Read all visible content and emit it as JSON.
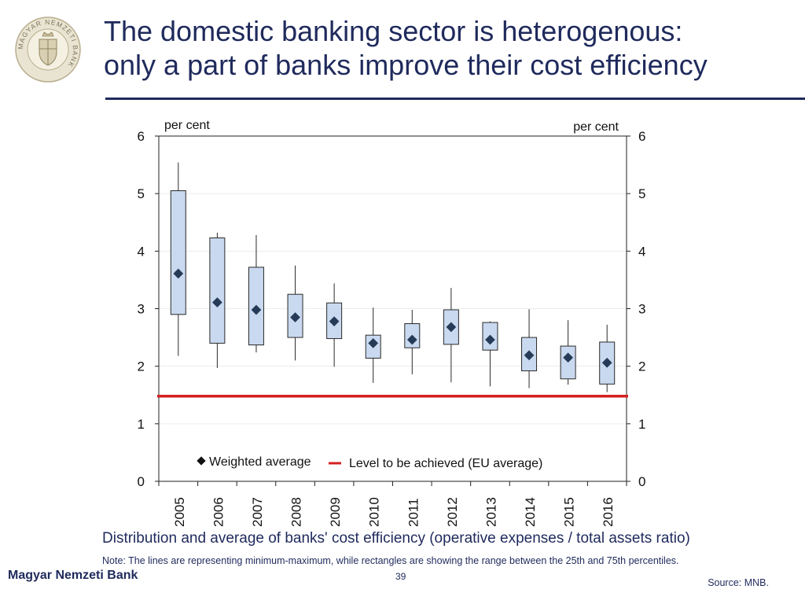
{
  "slide": {
    "title_line1": "The domestic banking sector is heterogenous:",
    "title_line2": "only a part of banks improve their cost efficiency",
    "caption": "Distribution and average of banks' cost efficiency (operative expenses / total assets ratio)",
    "note": "Note: The lines are representing minimum-maximum, while rectangles are showing the range between the 25th and 75th percentiles.",
    "brand": "Magyar Nemzeti Bank",
    "page_number": "39",
    "source": "Source: MNB.",
    "logo_text": "MAGYAR NEMZETI BANK"
  },
  "colors": {
    "title": "#1f2a5c",
    "box_fill": "#c9d9ef",
    "box_stroke": "#2a2a2a",
    "marker": "#253b57",
    "eu_line": "#d42020",
    "gridline": "#ececec"
  },
  "chart_data": {
    "type": "box",
    "categories": [
      "2005",
      "2006",
      "2007",
      "2008",
      "2009",
      "2010",
      "2011",
      "2012",
      "2013",
      "2014",
      "2015",
      "2016"
    ],
    "min": [
      2.18,
      1.97,
      2.24,
      2.1,
      1.99,
      1.71,
      1.86,
      1.72,
      1.65,
      1.62,
      1.68,
      1.55
    ],
    "p25": [
      2.9,
      2.4,
      2.37,
      2.5,
      2.48,
      2.14,
      2.32,
      2.38,
      2.28,
      1.92,
      1.78,
      1.69
    ],
    "p75": [
      5.05,
      4.23,
      3.72,
      3.25,
      3.1,
      2.54,
      2.74,
      2.98,
      2.76,
      2.5,
      2.35,
      2.42
    ],
    "max": [
      5.54,
      4.32,
      4.28,
      3.75,
      3.44,
      3.02,
      2.98,
      3.36,
      2.78,
      2.99,
      2.8,
      2.72
    ],
    "weighted_average": [
      3.61,
      3.11,
      2.98,
      2.85,
      2.78,
      2.4,
      2.46,
      2.68,
      2.46,
      2.19,
      2.15,
      2.06
    ],
    "eu_level": 1.48,
    "ylim": [
      0,
      6
    ],
    "yticks": [
      0,
      1,
      2,
      3,
      4,
      5,
      6
    ],
    "ylabel_left": "per cent",
    "ylabel_right": "per cent",
    "legend": {
      "weighted_average": "Weighted average",
      "eu_level": "Level to be achieved (EU average)"
    },
    "legend_position": "bottom-center"
  }
}
